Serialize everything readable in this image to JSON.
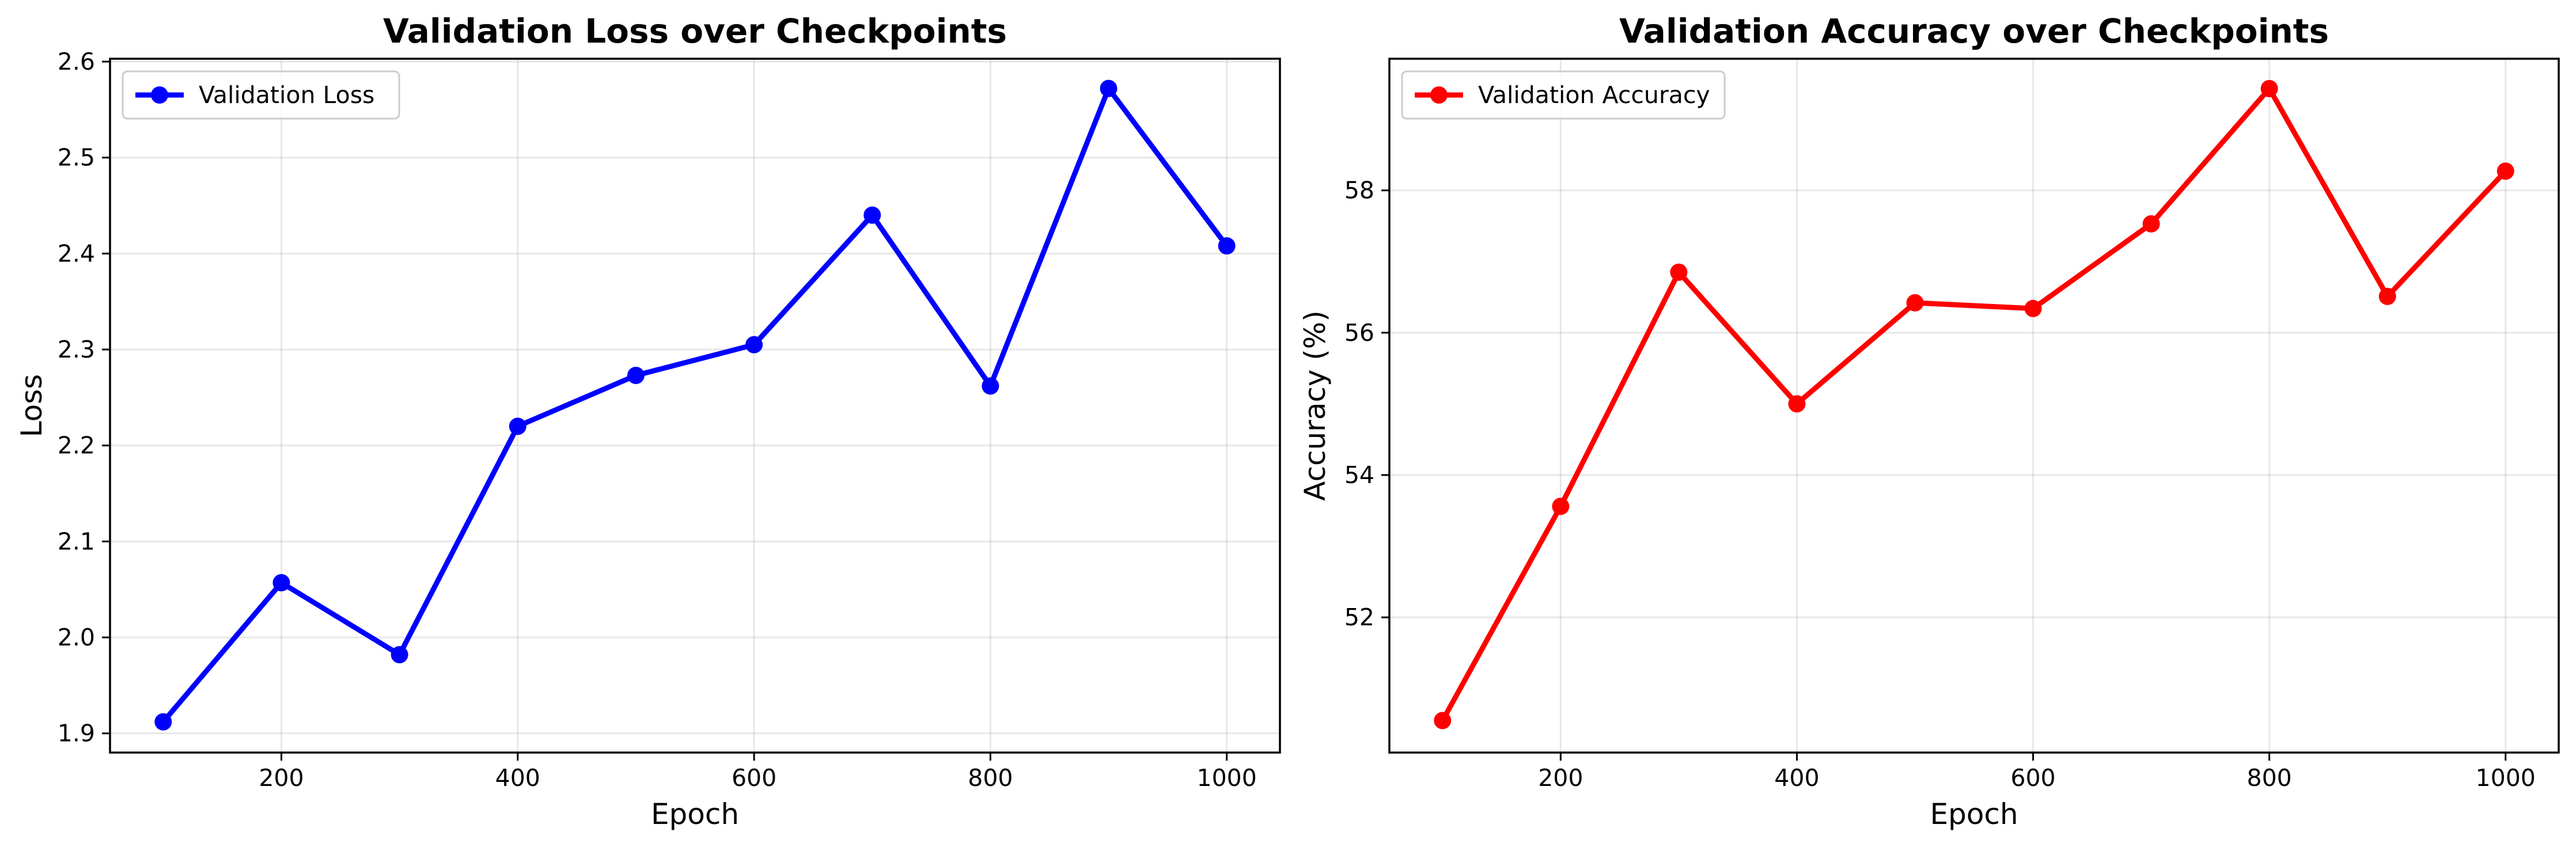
{
  "chart_data": [
    {
      "type": "line",
      "title": "Validation Loss over Checkpoints",
      "xlabel": "Epoch",
      "ylabel": "Loss",
      "xlim": [
        55,
        1045
      ],
      "ylim": [
        1.88,
        2.603
      ],
      "xticks": [
        200,
        400,
        600,
        800,
        1000
      ],
      "yticks": [
        1.9,
        2.0,
        2.1,
        2.2,
        2.3,
        2.4,
        2.5,
        2.6
      ],
      "ytick_decimals": 1,
      "grid": true,
      "legend_position": "upper left",
      "series": [
        {
          "name": "Validation Loss",
          "color": "#0000ff",
          "marker": "circle",
          "x": [
            100,
            200,
            300,
            400,
            500,
            600,
            700,
            800,
            900,
            1000
          ],
          "y": [
            1.912,
            2.057,
            1.982,
            2.22,
            2.273,
            2.305,
            2.44,
            2.262,
            2.572,
            2.408
          ]
        }
      ]
    },
    {
      "type": "line",
      "title": "Validation Accuracy over Checkpoints",
      "xlabel": "Epoch",
      "ylabel": "Accuracy (%)",
      "xlim": [
        55,
        1045
      ],
      "ylim": [
        50.1,
        59.85
      ],
      "xticks": [
        200,
        400,
        600,
        800,
        1000
      ],
      "yticks": [
        52,
        54,
        56,
        58
      ],
      "ytick_decimals": 0,
      "grid": true,
      "legend_position": "upper left",
      "series": [
        {
          "name": "Validation Accuracy",
          "color": "#ff0000",
          "marker": "circle",
          "x": [
            100,
            200,
            300,
            400,
            500,
            600,
            700,
            800,
            900,
            1000
          ],
          "y": [
            50.55,
            53.56,
            56.85,
            55.0,
            56.42,
            56.34,
            57.53,
            59.43,
            56.51,
            58.27
          ]
        }
      ]
    }
  ]
}
